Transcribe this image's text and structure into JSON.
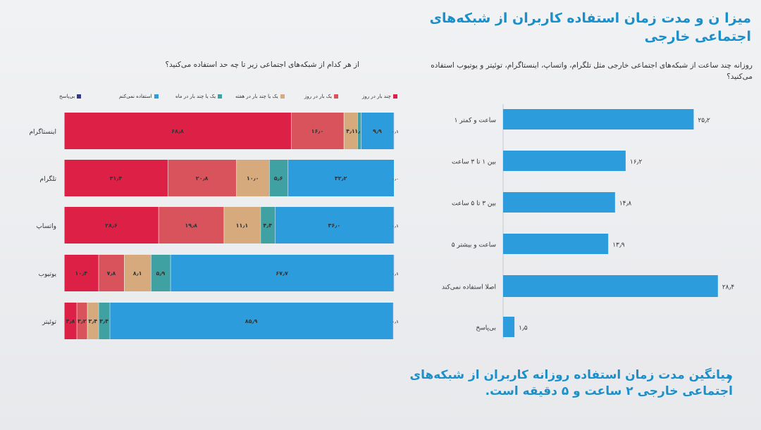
{
  "slide": {
    "title": "میزا ن و مدت زمان استفاده کاربران از شبکه‌های اجتماعی خارجی",
    "summary": "میانگین مدت زمان استفاده روزانه کاربران از شبکه‌های اجتماعی خارجی ۲ ساعت و ۵ دقیقه است.",
    "summary_icon": "chevron-right-icon"
  },
  "colors": {
    "several_per_day": "#dc2046",
    "once_per_day": "#d9535c",
    "several_per_week": "#d6aa7c",
    "several_per_month": "#3fa1a2",
    "dont_use": "#2c9cdc",
    "no_answer": "#333a8c",
    "bar_blue": "#2c9cdc"
  },
  "chart_data": [
    {
      "type": "stacked-bar",
      "title": "از هر کدام از شبکه‌های اجتماعی زیر تا چه حد استفاده می‌کنید؟",
      "categories": [
        "اینستاگرام",
        "تلگرام",
        "واتساپ",
        "یوتیوب",
        "توئیتر"
      ],
      "series": [
        {
          "name": "چند بار در روز",
          "color": "#dc2046",
          "values": [
            68.8,
            31.4,
            28.6,
            10.4,
            3.8
          ],
          "labels": [
            "۶۸٫۸",
            "۳۱٫۴",
            "۲۸٫۶",
            "۱۰٫۴",
            "۳٫۸"
          ]
        },
        {
          "name": "یک بار در روز",
          "color": "#d9535c",
          "values": [
            16.0,
            20.8,
            19.8,
            7.8,
            3.2
          ],
          "labels": [
            "۱۶٫۰",
            "۲۰٫۸",
            "۱۹٫۸",
            "۷٫۸",
            "۳٫۲"
          ]
        },
        {
          "name": "یک یا چند بار در هفته",
          "color": "#d6aa7c",
          "values": [
            4.1,
            10.0,
            11.1,
            8.1,
            3.4
          ],
          "labels": [
            "۴٫۱",
            "۱۰٫۰",
            "۱۱٫۱",
            "۸٫۱",
            "۳٫۴"
          ]
        },
        {
          "name": "یک یا چند بار در ماه",
          "color": "#3fa1a2",
          "values": [
            1.1,
            5.6,
            4.4,
            5.9,
            3.4
          ],
          "labels": [
            "۱٫۱",
            "۵٫۶",
            "۴٫۴",
            "۵٫۹",
            "۳٫۴"
          ]
        },
        {
          "name": "استفاده نمی‌کنم",
          "color": "#2c9cdc",
          "values": [
            9.9,
            32.2,
            36.0,
            67.7,
            85.9
          ],
          "labels": [
            "۹٫۹",
            "۳۲٫۲",
            "۳۶٫۰",
            "۶۷٫۷",
            "۸۵٫۹"
          ]
        },
        {
          "name": "بی‌پاسخ",
          "color": "#333a8c",
          "values": [
            0.1,
            0.0,
            0.1,
            0.1,
            0.1
          ],
          "labels": [
            "۰٫۱",
            "۰٫۰",
            "۰٫۱",
            "۰٫۱",
            "۰٫۱"
          ]
        }
      ],
      "xlim": [
        0,
        100
      ],
      "legend_placement": "top"
    },
    {
      "type": "bar",
      "title": "روزانه چند ساعت از شبکه‌های اجتماعی خارجی مثل تلگرام، واتساپ، اینستاگرام، توئیتر و یوتیوب استفاده می‌کنید؟",
      "categories": [
        "۱ ساعت و کمتر",
        "بین ۱ تا ۳ ساعت",
        "بین ۳ تا ۵ ساعت",
        "۵ ساعت و بیشتر",
        "اصلا استفاده نمی‌کند",
        "بی‌پاسخ"
      ],
      "values": [
        25.2,
        16.2,
        14.8,
        13.9,
        28.4,
        1.5
      ],
      "labels": [
        "۲۵٫۲",
        "۱۶٫۲",
        "۱۴٫۸",
        "۱۳٫۹",
        "۲۸٫۴",
        "۱٫۵"
      ],
      "color": "#2c9cdc",
      "xlim": [
        0,
        30
      ]
    }
  ]
}
